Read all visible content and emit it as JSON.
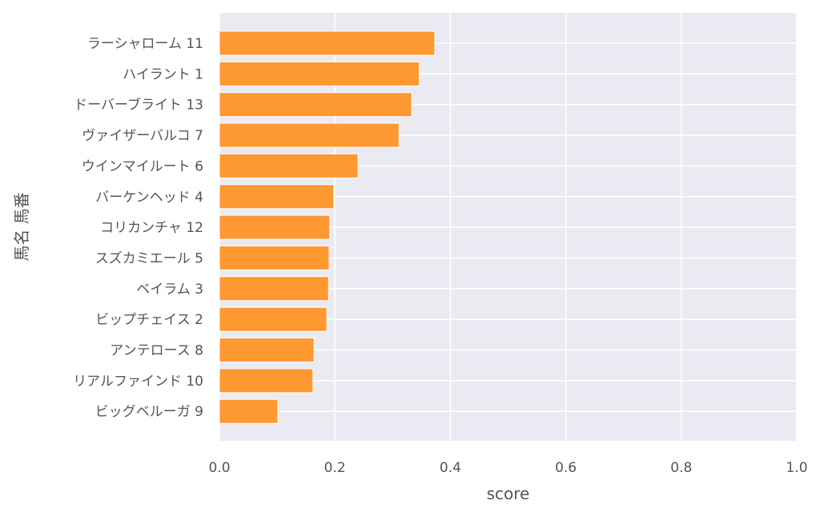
{
  "chart_data": {
    "type": "bar",
    "orientation": "horizontal",
    "xlabel": "score",
    "ylabel": "馬名 馬番",
    "xlim": [
      0.0,
      1.0
    ],
    "x_ticks": [
      "0.0",
      "0.2",
      "0.4",
      "0.6",
      "0.8",
      "1.0"
    ],
    "grid": true,
    "bar_color": "#ff9020",
    "background_color": "#eaeaf2",
    "categories": [
      "ラーシャローム 11",
      "ハイラント 1",
      "ドーバーブライト 13",
      "ヴァイザーバルコ 7",
      "ウインマイルート 6",
      "バーケンヘッド 4",
      "コリカンチャ 12",
      "スズカミエール 5",
      "ベイラム 3",
      "ビップチェイス 2",
      "アンテロース 8",
      "リアルファインド 10",
      "ビッグベルーガ 9"
    ],
    "values": [
      0.373,
      0.346,
      0.333,
      0.311,
      0.24,
      0.198,
      0.191,
      0.19,
      0.189,
      0.186,
      0.164,
      0.162,
      0.101
    ]
  }
}
